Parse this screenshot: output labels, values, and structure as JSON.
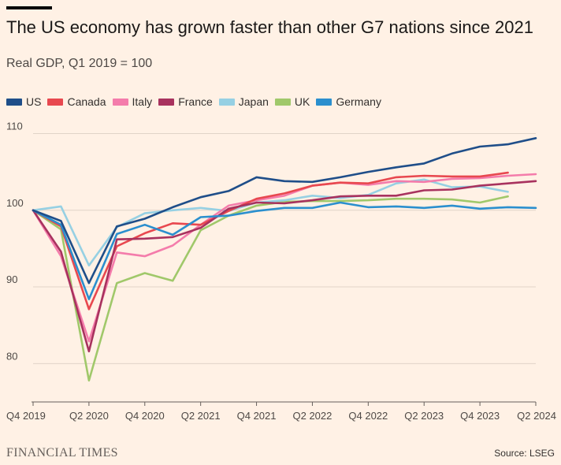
{
  "header": {
    "title": "The US economy has grown faster than other G7 nations since 2021",
    "subtitle": "Real GDP, Q1 2019 = 100"
  },
  "footer": {
    "logo": "FINANCIAL TIMES",
    "source": "Source: LSEG"
  },
  "colors": {
    "background": "#fff1e5",
    "US": "#1f4e89",
    "Canada": "#e8484f",
    "Italy": "#f47cab",
    "France": "#a8325e",
    "Japan": "#96d0e3",
    "UK": "#a0c86a",
    "Germany": "#2b8fce"
  },
  "chart_data": {
    "type": "line",
    "x": [
      "Q4 2019",
      "Q1 2020",
      "Q2 2020",
      "Q3 2020",
      "Q4 2020",
      "Q1 2021",
      "Q2 2021",
      "Q3 2021",
      "Q4 2021",
      "Q1 2022",
      "Q2 2022",
      "Q3 2022",
      "Q4 2022",
      "Q1 2023",
      "Q2 2023",
      "Q3 2023",
      "Q4 2023",
      "Q1 2024",
      "Q2 2024"
    ],
    "xticks": [
      "Q4 2019",
      "Q2 2020",
      "Q4 2020",
      "Q2 2021",
      "Q4 2021",
      "Q2 2022",
      "Q4 2022",
      "Q2 2023",
      "Q4 2023",
      "Q2 2024"
    ],
    "yticks": [
      80,
      90,
      100,
      110
    ],
    "ylim": [
      75,
      112
    ],
    "grid": true,
    "legend_position": "top-left",
    "series": [
      {
        "name": "UK",
        "color": "#a0c86a",
        "values": [
          100,
          97.5,
          77.8,
          90.5,
          91.8,
          90.8,
          97.4,
          99.3,
          100.6,
          101.1,
          101.2,
          101.2,
          101.3,
          101.5,
          101.5,
          101.4,
          101.0,
          101.8,
          null
        ]
      },
      {
        "name": "Japan",
        "color": "#96d0e3",
        "values": [
          100,
          100.5,
          92.8,
          97.8,
          99.6,
          100.0,
          100.3,
          99.9,
          101.0,
          101.3,
          101.9,
          101.6,
          102.0,
          103.5,
          104.0,
          103.0,
          103.1,
          102.4,
          null
        ]
      },
      {
        "name": "Italy",
        "color": "#f47cab",
        "values": [
          100,
          94.0,
          82.9,
          94.5,
          94.0,
          95.4,
          98.1,
          100.6,
          101.3,
          101.9,
          103.2,
          103.6,
          103.3,
          103.8,
          103.7,
          104.1,
          104.2,
          104.5,
          104.7
        ]
      },
      {
        "name": "Canada",
        "color": "#e8484f",
        "values": [
          100,
          97.9,
          87.1,
          95.3,
          97.0,
          98.3,
          98.1,
          99.9,
          101.5,
          102.2,
          103.2,
          103.6,
          103.5,
          104.3,
          104.5,
          104.4,
          104.4,
          104.9,
          null
        ]
      },
      {
        "name": "France",
        "color": "#a8325e",
        "values": [
          100,
          94.6,
          81.6,
          96.2,
          96.3,
          96.5,
          97.7,
          100.2,
          101.0,
          100.9,
          101.3,
          101.8,
          101.9,
          101.9,
          102.6,
          102.7,
          103.2,
          103.5,
          103.8
        ]
      },
      {
        "name": "Germany",
        "color": "#2b8fce",
        "values": [
          100,
          98.1,
          88.4,
          96.9,
          98.1,
          96.8,
          99.1,
          99.3,
          99.9,
          100.3,
          100.3,
          101.0,
          100.4,
          100.5,
          100.3,
          100.6,
          100.2,
          100.4,
          100.3
        ]
      },
      {
        "name": "US",
        "color": "#1f4e89",
        "values": [
          100,
          98.6,
          90.5,
          97.9,
          98.9,
          100.4,
          101.7,
          102.5,
          104.3,
          103.8,
          103.7,
          104.3,
          105.0,
          105.6,
          106.1,
          107.4,
          108.3,
          108.6,
          109.4
        ]
      }
    ],
    "legend": [
      "US",
      "Canada",
      "Italy",
      "France",
      "Japan",
      "UK",
      "Germany"
    ]
  }
}
